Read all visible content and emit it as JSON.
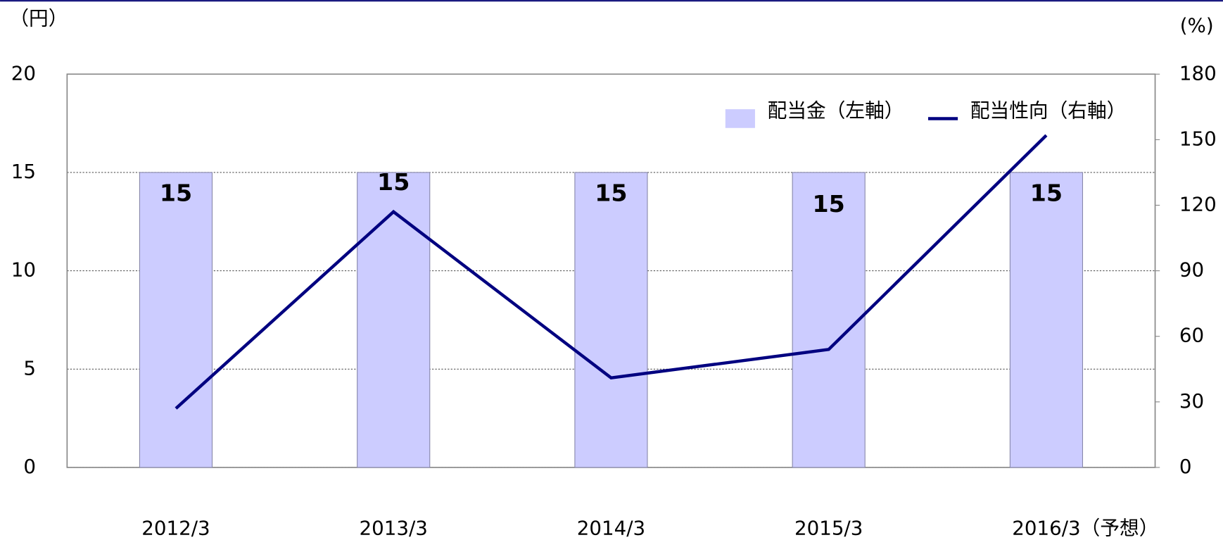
{
  "chart_data": {
    "type": "bar_line",
    "y_label": "（円）",
    "y2_label": "(%)",
    "categories": [
      "2012/3",
      "2013/3",
      "2014/3",
      "2015/3",
      "2016/3（予想）"
    ],
    "series": [
      {
        "name": "配当金（左軸）",
        "type": "bar",
        "color": "#ccccff",
        "values": [
          15,
          15,
          15,
          15,
          15
        ]
      },
      {
        "name": "配当性向（右軸）",
        "type": "line",
        "axis": "y2",
        "color": "#000080",
        "values": [
          27,
          117,
          41,
          54,
          152
        ]
      }
    ],
    "ylim": [
      0,
      20
    ],
    "yticks": [
      0,
      5,
      10,
      15,
      20
    ],
    "y2lim": [
      0,
      180
    ],
    "y2ticks": [
      0,
      30,
      60,
      90,
      120,
      150,
      180
    ],
    "grid": true,
    "legend": "upper right"
  }
}
